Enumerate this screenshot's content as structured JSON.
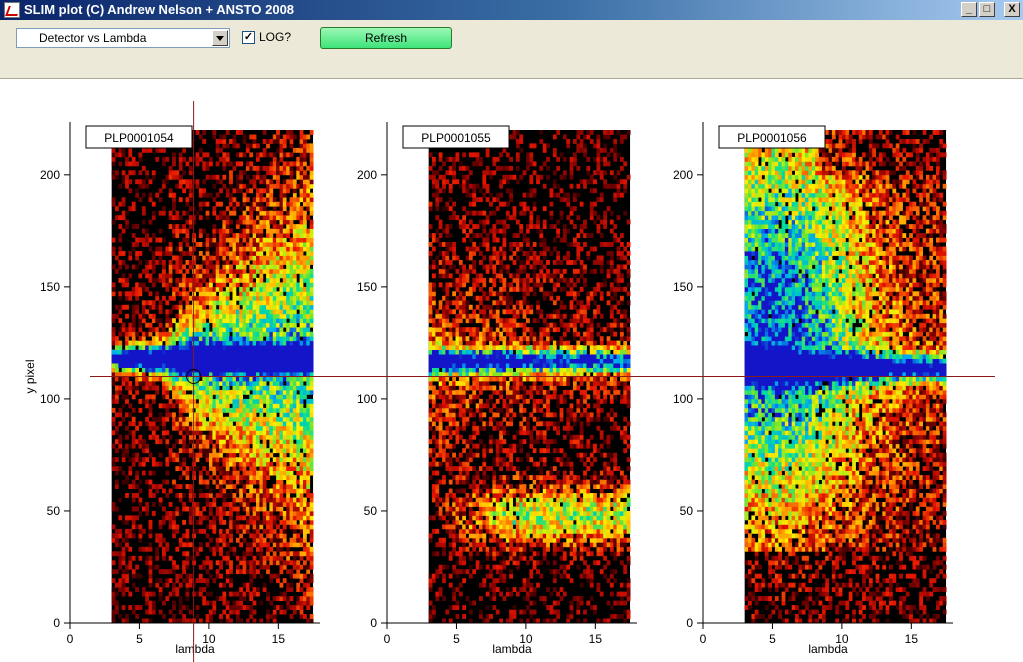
{
  "window": {
    "title": "SLIM plot (C) Andrew Nelson + ANSTO 2008",
    "buttons": [
      "_",
      "□",
      "X"
    ]
  },
  "toolbar": {
    "plot_select": "Detector vs Lambda",
    "log_checked": true,
    "log_label": "LOG?",
    "refresh_label": "Refresh"
  },
  "colors": {
    "titlebar": "#0a246a",
    "refresh": "#3ee47a",
    "crosshair": "#8b1a1a"
  },
  "icons": {
    "app": "chart-icon",
    "check": "checkmark-icon"
  },
  "chart_data": [
    {
      "type": "heatmap",
      "title": "PLP0001054",
      "xlabel": "lambda",
      "ylabel": "y pixel",
      "xlim": [
        0,
        18
      ],
      "ylim": [
        0,
        220
      ],
      "x_ticks": [
        0,
        5,
        10,
        15
      ],
      "y_ticks": [
        0,
        50,
        100,
        150,
        200
      ],
      "data_x_range": [
        3,
        17.5
      ],
      "beam_y": 118,
      "beam_start_x": 7
    },
    {
      "type": "heatmap",
      "title": "PLP0001055",
      "xlabel": "lambda",
      "ylabel": "",
      "xlim": [
        0,
        18
      ],
      "ylim": [
        0,
        220
      ],
      "x_ticks": [
        0,
        5,
        10,
        15
      ],
      "y_ticks": [
        0,
        50,
        100,
        150,
        200
      ],
      "data_x_range": [
        3,
        17.5
      ],
      "beam_y": 117,
      "second_y": 48
    },
    {
      "type": "heatmap",
      "title": "PLP0001056",
      "xlabel": "lambda",
      "ylabel": "",
      "xlim": [
        0,
        18
      ],
      "ylim": [
        0,
        220
      ],
      "x_ticks": [
        0,
        5,
        10,
        15
      ],
      "y_ticks": [
        0,
        50,
        100,
        150,
        200
      ],
      "data_x_range": [
        3,
        17.5
      ],
      "beam_y": 114,
      "diffuse_center": [
        5,
        140
      ]
    }
  ],
  "cursor": {
    "panel": 0,
    "x": 8.9,
    "y": 110
  }
}
